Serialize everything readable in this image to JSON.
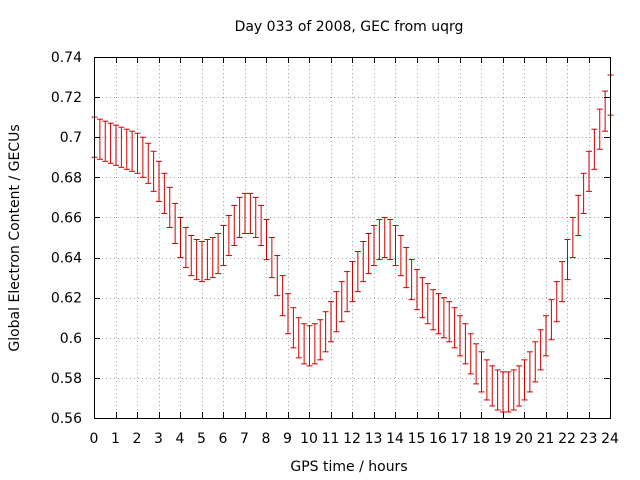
{
  "chart_data": {
    "type": "scatter",
    "title": "Day 033 of 2008, GEC from uqrg",
    "xlabel": "GPS time / hours",
    "ylabel": "Global Electron Content / GECUs",
    "xlim": [
      0,
      24
    ],
    "ylim": [
      0.56,
      0.74
    ],
    "x_ticks": [
      0,
      1,
      2,
      3,
      4,
      5,
      6,
      7,
      8,
      9,
      10,
      11,
      12,
      13,
      14,
      15,
      16,
      17,
      18,
      19,
      20,
      21,
      22,
      23,
      24
    ],
    "y_ticks": [
      0.56,
      0.58,
      0.6,
      0.62,
      0.64,
      0.66,
      0.68,
      0.7,
      0.72,
      0.74
    ],
    "grid": true,
    "legend": "none",
    "colors": {
      "series": "#cc0000",
      "grid": "#a0a0a0",
      "axes": "#000000"
    },
    "error_half_width": 0.01,
    "series": [
      {
        "style": "errorbars",
        "x": [
          0,
          0.25,
          0.5,
          0.75,
          1,
          1.25,
          1.5,
          1.75,
          2,
          2.25,
          2.5,
          2.75,
          3,
          3.25,
          3.5,
          3.75,
          4,
          4.25,
          4.5,
          4.75,
          5,
          5.25,
          5.5,
          5.75,
          6,
          6.25,
          6.5,
          6.75,
          7,
          7.25,
          7.5,
          7.75,
          8,
          8.25,
          8.5,
          8.75,
          9,
          9.25,
          9.5,
          9.75,
          10,
          10.25,
          10.5,
          10.75,
          11,
          11.25,
          11.5,
          11.75,
          12,
          12.25,
          12.5,
          12.75,
          13,
          13.25,
          13.5,
          13.75,
          14,
          14.25,
          14.5,
          14.75,
          15,
          15.25,
          15.5,
          15.75,
          16,
          16.25,
          16.5,
          16.75,
          17,
          17.25,
          17.5,
          17.75,
          18,
          18.25,
          18.5,
          18.75,
          19,
          19.25,
          19.5,
          19.75,
          20,
          20.25,
          20.5,
          20.75,
          21,
          21.25,
          21.5,
          21.75,
          22,
          22.25,
          22.5,
          22.75,
          23,
          23.25,
          23.5,
          23.75,
          24
        ],
        "y": [
          0.7,
          0.699,
          0.698,
          0.697,
          0.696,
          0.695,
          0.694,
          0.693,
          0.692,
          0.69,
          0.687,
          0.683,
          0.678,
          0.672,
          0.665,
          0.657,
          0.65,
          0.645,
          0.641,
          0.639,
          0.638,
          0.639,
          0.64,
          0.642,
          0.646,
          0.651,
          0.656,
          0.66,
          0.662,
          0.662,
          0.66,
          0.656,
          0.649,
          0.64,
          0.631,
          0.621,
          0.612,
          0.605,
          0.6,
          0.597,
          0.596,
          0.597,
          0.599,
          0.603,
          0.608,
          0.613,
          0.618,
          0.623,
          0.628,
          0.633,
          0.638,
          0.642,
          0.646,
          0.649,
          0.65,
          0.649,
          0.646,
          0.641,
          0.635,
          0.629,
          0.624,
          0.62,
          0.617,
          0.614,
          0.612,
          0.61,
          0.608,
          0.605,
          0.601,
          0.597,
          0.592,
          0.587,
          0.583,
          0.579,
          0.576,
          0.574,
          0.573,
          0.573,
          0.574,
          0.576,
          0.579,
          0.583,
          0.588,
          0.594,
          0.601,
          0.609,
          0.618,
          0.628,
          0.639,
          0.65,
          0.661,
          0.672,
          0.683,
          0.694,
          0.704,
          0.713,
          0.721
        ]
      }
    ]
  }
}
